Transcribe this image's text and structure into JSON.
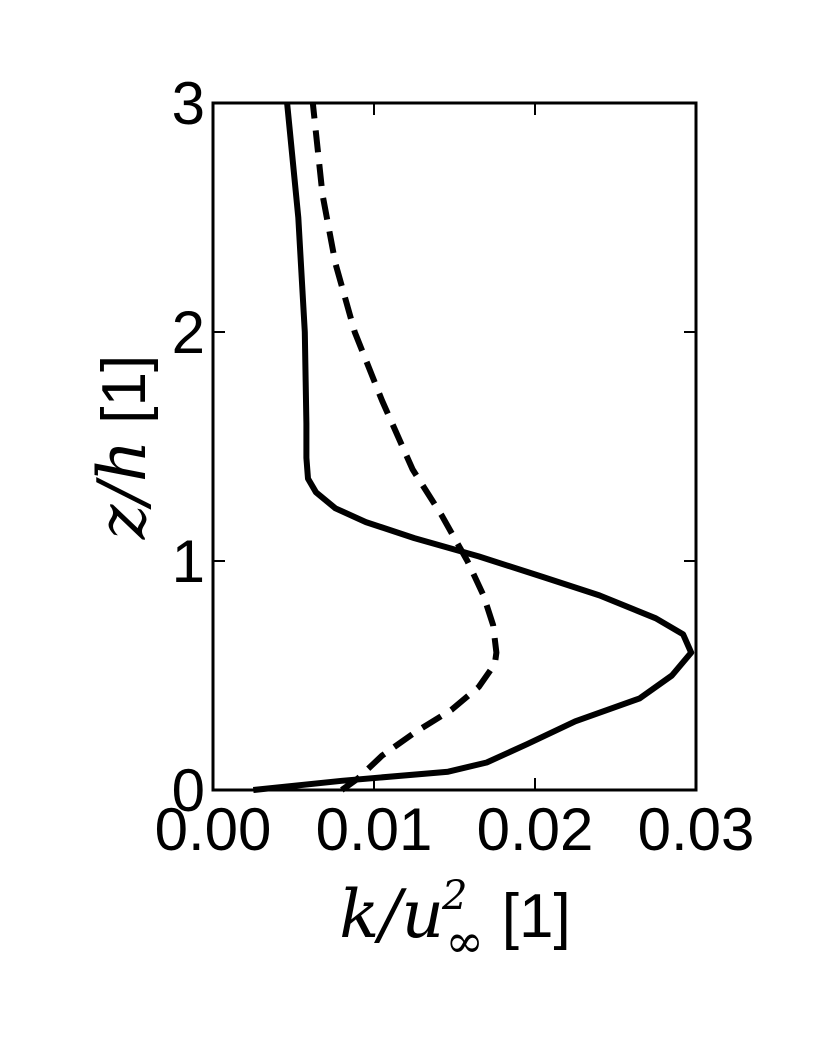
{
  "chart_data": {
    "type": "line",
    "title": "",
    "xlabel": {
      "var_k": "k",
      "slash": "/",
      "var_u": "u",
      "sup": "2",
      "sub": "∞",
      "unit": "[1]"
    },
    "ylabel": {
      "var_z": "z",
      "slash": "/",
      "var_h": "h",
      "unit": "[1]"
    },
    "xlim": [
      0.0,
      0.03
    ],
    "ylim": [
      0,
      3
    ],
    "x_ticks": [
      0.0,
      0.01,
      0.02,
      0.03
    ],
    "x_tick_labels": [
      "0.00",
      "0.01",
      "0.02",
      "0.03"
    ],
    "y_ticks": [
      0,
      1,
      2,
      3
    ],
    "y_tick_labels": [
      "0",
      "1",
      "2",
      "3"
    ],
    "grid": false,
    "legend": "none",
    "series": [
      {
        "style": "solid",
        "color": "#000000",
        "points": [
          [
            0.0025,
            0.0
          ],
          [
            0.008,
            0.04
          ],
          [
            0.0146,
            0.08
          ],
          [
            0.017,
            0.12
          ],
          [
            0.0195,
            0.2
          ],
          [
            0.0225,
            0.3
          ],
          [
            0.0265,
            0.4
          ],
          [
            0.0285,
            0.5
          ],
          [
            0.0297,
            0.6
          ],
          [
            0.0292,
            0.68
          ],
          [
            0.0275,
            0.75
          ],
          [
            0.024,
            0.85
          ],
          [
            0.0205,
            0.93
          ],
          [
            0.0165,
            1.02
          ],
          [
            0.0125,
            1.1
          ],
          [
            0.0095,
            1.17
          ],
          [
            0.0076,
            1.23
          ],
          [
            0.0064,
            1.3
          ],
          [
            0.0059,
            1.36
          ],
          [
            0.0058,
            1.45
          ],
          [
            0.0058,
            1.6
          ],
          [
            0.0057,
            2.0
          ],
          [
            0.0053,
            2.5
          ],
          [
            0.0046,
            3.0
          ]
        ]
      },
      {
        "style": "dashed",
        "color": "#000000",
        "points": [
          [
            0.008,
            0.0
          ],
          [
            0.009,
            0.05
          ],
          [
            0.0105,
            0.15
          ],
          [
            0.0125,
            0.25
          ],
          [
            0.0148,
            0.35
          ],
          [
            0.0165,
            0.45
          ],
          [
            0.0175,
            0.55
          ],
          [
            0.0176,
            0.6
          ],
          [
            0.0174,
            0.72
          ],
          [
            0.0168,
            0.85
          ],
          [
            0.0158,
            1.0
          ],
          [
            0.0142,
            1.2
          ],
          [
            0.0124,
            1.4
          ],
          [
            0.0105,
            1.7
          ],
          [
            0.0088,
            2.0
          ],
          [
            0.0076,
            2.3
          ],
          [
            0.0068,
            2.6
          ],
          [
            0.0062,
            3.0
          ]
        ]
      }
    ]
  }
}
